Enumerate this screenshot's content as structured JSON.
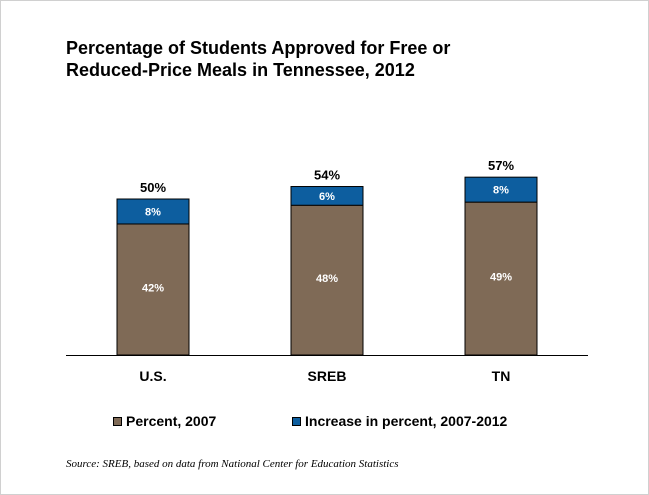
{
  "chart_data": {
    "type": "bar",
    "stacked": true,
    "title": "Percentage of Students Approved for Free or Reduced-Price Meals in Tennessee, 2012",
    "title_lines": [
      "Percentage of Students Approved for Free or",
      "Reduced-Price Meals in Tennessee, 2012"
    ],
    "categories": [
      "U.S.",
      "SREB",
      "TN"
    ],
    "series": [
      {
        "name": "Percent, 2007",
        "color": "#7F6A56",
        "values": [
          42,
          48,
          49
        ],
        "labels": [
          "42%",
          "48%",
          "49%"
        ]
      },
      {
        "name": "Increase in percent, 2007-2012",
        "color": "#0D5E9F",
        "values": [
          8,
          6,
          8
        ],
        "labels": [
          "8%",
          "6%",
          "8%"
        ]
      }
    ],
    "totals": [
      50,
      54,
      57
    ],
    "total_labels": [
      "50%",
      "54%",
      "57%"
    ],
    "xlabel": "",
    "ylabel": "",
    "ylim": [
      0,
      60
    ],
    "grid": false,
    "legend_position": "bottom",
    "source": "Source: SREB, based on data from National Center for Education Statistics"
  }
}
